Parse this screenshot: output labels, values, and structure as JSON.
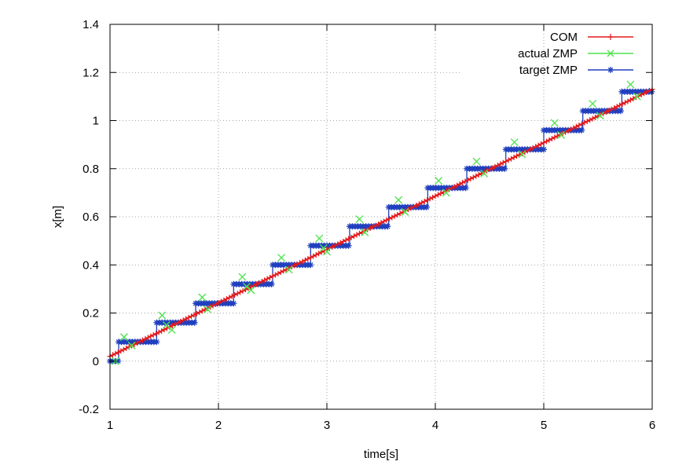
{
  "chart_data": {
    "type": "line",
    "title": "",
    "xlabel": "time[s]",
    "ylabel": "x[m]",
    "xlim": [
      1,
      6
    ],
    "ylim": [
      -0.2,
      1.4
    ],
    "xticks": [
      "1",
      "2",
      "3",
      "4",
      "5",
      "6"
    ],
    "yticks": [
      "-0.2",
      "0",
      "0.2",
      "0.4",
      "0.6",
      "0.8",
      "1",
      "1.2",
      "1.4"
    ],
    "grid": true,
    "legend_position": "top-right",
    "series": [
      {
        "name": "COM",
        "color": "#e41a1c",
        "marker": "plus",
        "x": [
          1.0,
          6.0
        ],
        "y": [
          0.02,
          1.13
        ]
      },
      {
        "name": "actual ZMP",
        "color": "#4de34d",
        "marker": "cross",
        "x": [
          1.05,
          1.13,
          1.2,
          1.48,
          1.52,
          1.57,
          1.85,
          1.9,
          2.22,
          2.26,
          2.3,
          2.58,
          2.65,
          2.93,
          2.97,
          3.0,
          3.3,
          3.35,
          3.66,
          3.72,
          4.03,
          4.1,
          4.38,
          4.45,
          4.73,
          4.8,
          5.1,
          5.16,
          5.45,
          5.52,
          5.8,
          5.86
        ],
        "y": [
          0.0,
          0.1,
          0.065,
          0.19,
          0.15,
          0.13,
          0.265,
          0.215,
          0.35,
          0.31,
          0.295,
          0.43,
          0.38,
          0.51,
          0.47,
          0.455,
          0.59,
          0.535,
          0.67,
          0.62,
          0.75,
          0.7,
          0.83,
          0.78,
          0.91,
          0.86,
          0.99,
          0.94,
          1.07,
          1.02,
          1.15,
          1.1
        ]
      },
      {
        "name": "target ZMP",
        "color": "#1f3fbf",
        "marker": "star",
        "steps": [
          {
            "x0": 1.0,
            "x1": 1.08,
            "y": 0.0
          },
          {
            "x0": 1.08,
            "x1": 1.43,
            "y": 0.08
          },
          {
            "x0": 1.43,
            "x1": 1.79,
            "y": 0.16
          },
          {
            "x0": 1.79,
            "x1": 2.14,
            "y": 0.24
          },
          {
            "x0": 2.14,
            "x1": 2.5,
            "y": 0.32
          },
          {
            "x0": 2.5,
            "x1": 2.85,
            "y": 0.4
          },
          {
            "x0": 2.85,
            "x1": 3.21,
            "y": 0.48
          },
          {
            "x0": 3.21,
            "x1": 3.57,
            "y": 0.56
          },
          {
            "x0": 3.57,
            "x1": 3.93,
            "y": 0.64
          },
          {
            "x0": 3.93,
            "x1": 4.29,
            "y": 0.72
          },
          {
            "x0": 4.29,
            "x1": 4.65,
            "y": 0.8
          },
          {
            "x0": 4.65,
            "x1": 5.0,
            "y": 0.88
          },
          {
            "x0": 5.0,
            "x1": 5.36,
            "y": 0.96
          },
          {
            "x0": 5.36,
            "x1": 5.72,
            "y": 1.04
          },
          {
            "x0": 5.72,
            "x1": 6.0,
            "y": 1.12
          }
        ]
      }
    ]
  }
}
